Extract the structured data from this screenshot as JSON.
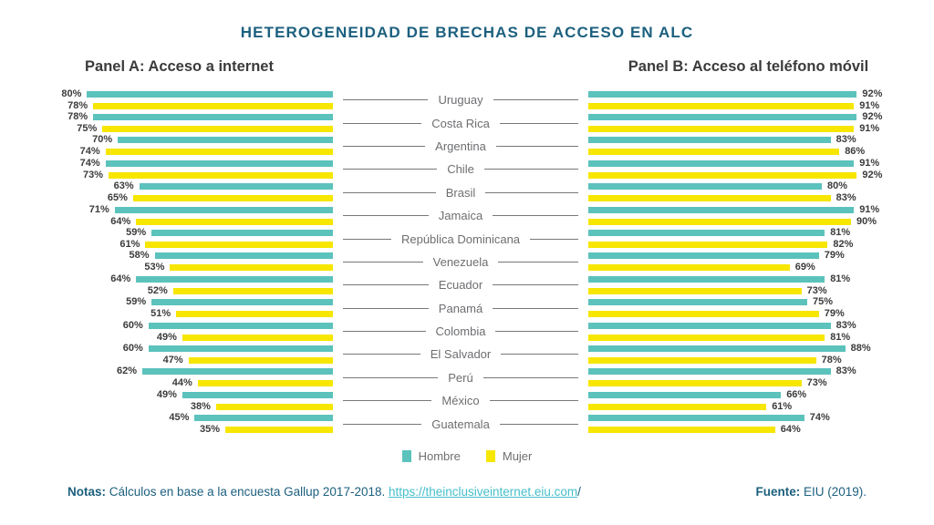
{
  "title": "HETEROGENEIDAD DE BRECHAS DE ACCESO EN ALC",
  "panels": {
    "a_title": "Panel A: Acceso a internet",
    "b_title": "Panel B: Acceso al teléfono móvil"
  },
  "legend": {
    "hombre": "Hombre",
    "mujer": "Mujer"
  },
  "footer": {
    "notas_label": "Notas:",
    "notas_text": " Cálculos en base a la encuesta Gallup 2017-2018. ",
    "link_text": "https://theinclusiveinternet.eiu.com",
    "link_suffix": "/",
    "fuente_label": "Fuente:",
    "fuente_text": " EIU (2019)."
  },
  "colors": {
    "hombre": "#5BC2BC",
    "mujer": "#F7E600",
    "title": "#1C607F",
    "link": "#45BFC9",
    "dark": "#3B3B3B",
    "gray": "#6D6E71",
    "line": "#77787B"
  },
  "chart_data": {
    "type": "bar",
    "orientation": "horizontal-diverging",
    "title": "HETEROGENEIDAD DE BRECHAS DE ACCESO EN ALC",
    "unit": "%",
    "xlim": [
      0,
      100
    ],
    "legend_entries": [
      "Hombre",
      "Mujer"
    ],
    "legend_position": "bottom",
    "categories": [
      "Uruguay",
      "Costa Rica",
      "Argentina",
      "Chile",
      "Brasil",
      "Jamaica",
      "República Dominicana",
      "Venezuela",
      "Ecuador",
      "Panamá",
      "Colombia",
      "El Salvador",
      "Perú",
      "México",
      "Guatemala"
    ],
    "panels": [
      {
        "title": "Panel A: Acceso a internet",
        "direction": "left",
        "series": [
          {
            "name": "Hombre",
            "values": [
              80,
              78,
              70,
              74,
              63,
              71,
              59,
              58,
              64,
              59,
              60,
              60,
              62,
              49,
              45
            ]
          },
          {
            "name": "Mujer",
            "values": [
              78,
              75,
              74,
              73,
              65,
              64,
              61,
              53,
              52,
              51,
              49,
              47,
              44,
              38,
              35
            ]
          }
        ]
      },
      {
        "title": "Panel B: Acceso al teléfono móvil",
        "direction": "right",
        "series": [
          {
            "name": "Hombre",
            "values": [
              92,
              92,
              83,
              91,
              80,
              91,
              81,
              79,
              81,
              75,
              83,
              88,
              83,
              66,
              74
            ]
          },
          {
            "name": "Mujer",
            "values": [
              91,
              91,
              86,
              92,
              83,
              90,
              82,
              69,
              73,
              79,
              81,
              78,
              73,
              61,
              64
            ]
          }
        ]
      }
    ]
  }
}
